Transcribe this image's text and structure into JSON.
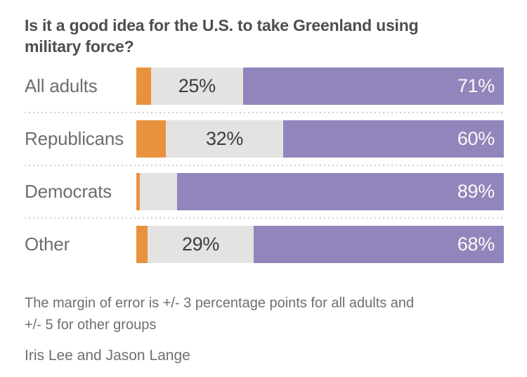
{
  "title": "Is it a good idea for the U.S. to take Greenland using military force?",
  "title_lines": [
    "Is it a good idea for the U.S. to take Greenland using",
    "military force?"
  ],
  "footnote": "The margin of error is +/- 3 percentage points for all adults and +/- 5 for other groups",
  "footnote_lines": [
    "The margin of error is +/- 3 percentage points for all adults and",
    "+/- 5 for other groups"
  ],
  "byline": "Iris Lee and Jason Lange",
  "colors": {
    "background": "#ffffff",
    "orange_segment": "#e8923e",
    "gray_segment": "#e4e3e1",
    "purple_segment": "#9185bc",
    "title_text": "#4e4e4e",
    "category_label_text": "#6e6e6e",
    "value_label_dark": "#3d3d3d",
    "value_label_light": "#fbf9f7",
    "divider_dots": "#d0d0d0"
  },
  "chart_data": {
    "type": "bar",
    "orientation": "horizontal",
    "stacked": true,
    "title": "Is it a good idea for the U.S. to take Greenland using military force?",
    "categories": [
      "All adults",
      "Republicans",
      "Democrats",
      "Other"
    ],
    "series": [
      {
        "name": "orange-segment",
        "color": "#e8923e",
        "values": [
          4,
          8,
          1,
          3
        ],
        "display_labels": [
          "",
          "",
          "",
          ""
        ]
      },
      {
        "name": "gray-segment",
        "color": "#e4e3e1",
        "values": [
          25,
          32,
          10,
          29
        ],
        "display_labels": [
          "25%",
          "32%",
          "",
          "29%"
        ]
      },
      {
        "name": "purple-segment",
        "color": "#9185bc",
        "values": [
          71,
          60,
          89,
          68
        ],
        "display_labels": [
          "71%",
          "60%",
          "89%",
          "68%"
        ]
      }
    ],
    "xlim": [
      0,
      100
    ],
    "grid": false,
    "legend": "none",
    "row_separator": "dotted"
  }
}
